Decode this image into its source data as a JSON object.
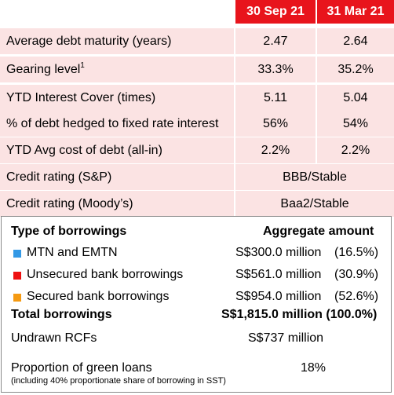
{
  "header": {
    "col1": "30 Sep 21",
    "col2": "31 Mar 21"
  },
  "metrics": [
    {
      "label": "Average debt maturity (years)",
      "v1": "2.47",
      "v2": "2.64"
    },
    {
      "label": "Gearing level",
      "sup": "1",
      "v1": "33.3%",
      "v2": "35.2%"
    },
    {
      "label": "YTD Interest Cover (times)",
      "v1": "5.11",
      "v2": "5.04"
    },
    {
      "label": "% of debt hedged to fixed rate interest",
      "v1": "56%",
      "v2": "54%"
    },
    {
      "label": "YTD Avg cost of debt (all-in)",
      "v1": "2.2%",
      "v2": "2.2%"
    },
    {
      "label": "Credit rating (S&P)",
      "value": "BBB/Stable"
    },
    {
      "label": "Credit rating (Moody’s)",
      "value": "Baa2/Stable"
    }
  ],
  "borrowings": {
    "title": "Type of borrowings",
    "amount_header": "Aggregate amount",
    "items": [
      {
        "label": "MTN and EMTN",
        "amount": "S$300.0 million",
        "share": "(16.5%)",
        "color": "#3399e6"
      },
      {
        "label": "Unsecured bank borrowings",
        "amount": "S$561.0 million",
        "share": "(30.9%)",
        "color": "#ee1111"
      },
      {
        "label": "Secured bank borrowings",
        "amount": "S$954.0 million",
        "share": "(52.6%)",
        "color": "#f59a12"
      }
    ],
    "total": {
      "label": "Total borrowings",
      "value": "S$1,815.0 million (100.0%)"
    },
    "undrawn": {
      "label": "Undrawn RCFs",
      "value": "S$737 million"
    },
    "green": {
      "label": "Proportion of green loans",
      "note": "(including 40% proportionate share of borrowing in SST)",
      "value": "18%"
    }
  }
}
